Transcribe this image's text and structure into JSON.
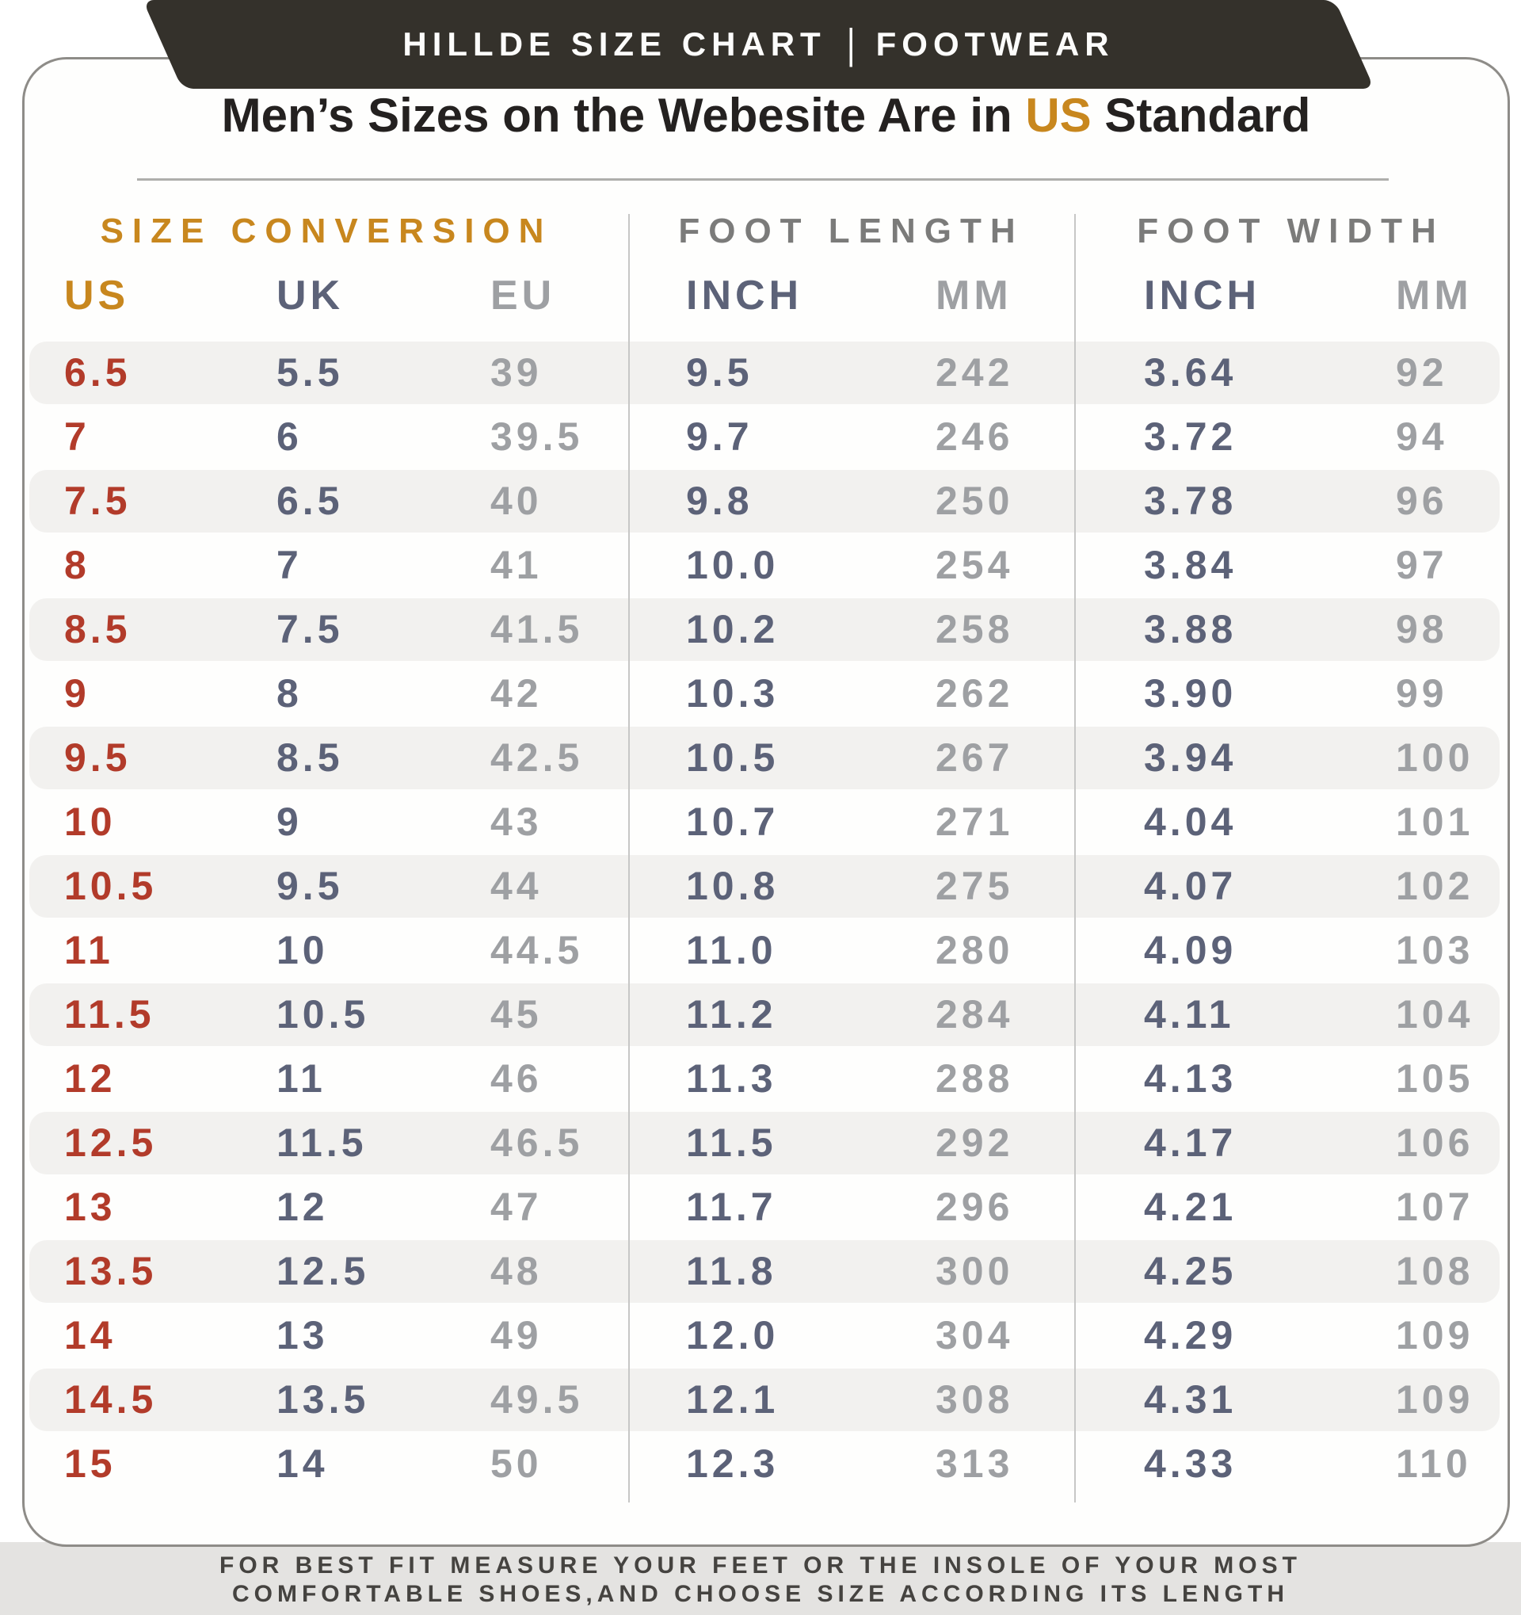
{
  "banner": {
    "left": "HILLDE SIZE CHART",
    "separator": "|",
    "right": "FOOTWEAR"
  },
  "title": {
    "prefix": "Men’s Sizes on the Webesite Are in ",
    "highlight": "US",
    "suffix": " Standard"
  },
  "chart_data": {
    "type": "table",
    "title": "Men’s Sizes on the Webesite Are in US Standard",
    "section_headers": [
      "SIZE CONVERSION",
      "FOOT LENGTH",
      "FOOT WIDTH"
    ],
    "columns": [
      "US",
      "UK",
      "EU",
      "INCH",
      "MM",
      "INCH",
      "MM"
    ],
    "rows": [
      [
        "6.5",
        "5.5",
        "39",
        "9.5",
        "242",
        "3.64",
        "92"
      ],
      [
        "7",
        "6",
        "39.5",
        "9.7",
        "246",
        "3.72",
        "94"
      ],
      [
        "7.5",
        "6.5",
        "40",
        "9.8",
        "250",
        "3.78",
        "96"
      ],
      [
        "8",
        "7",
        "41",
        "10.0",
        "254",
        "3.84",
        "97"
      ],
      [
        "8.5",
        "7.5",
        "41.5",
        "10.2",
        "258",
        "3.88",
        "98"
      ],
      [
        "9",
        "8",
        "42",
        "10.3",
        "262",
        "3.90",
        "99"
      ],
      [
        "9.5",
        "8.5",
        "42.5",
        "10.5",
        "267",
        "3.94",
        "100"
      ],
      [
        "10",
        "9",
        "43",
        "10.7",
        "271",
        "4.04",
        "101"
      ],
      [
        "10.5",
        "9.5",
        "44",
        "10.8",
        "275",
        "4.07",
        "102"
      ],
      [
        "11",
        "10",
        "44.5",
        "11.0",
        "280",
        "4.09",
        "103"
      ],
      [
        "11.5",
        "10.5",
        "45",
        "11.2",
        "284",
        "4.11",
        "104"
      ],
      [
        "12",
        "11",
        "46",
        "11.3",
        "288",
        "4.13",
        "105"
      ],
      [
        "12.5",
        "11.5",
        "46.5",
        "11.5",
        "292",
        "4.17",
        "106"
      ],
      [
        "13",
        "12",
        "47",
        "11.7",
        "296",
        "4.21",
        "107"
      ],
      [
        "13.5",
        "12.5",
        "48",
        "11.8",
        "300",
        "4.25",
        "108"
      ],
      [
        "14",
        "13",
        "49",
        "12.0",
        "304",
        "4.29",
        "109"
      ],
      [
        "14.5",
        "13.5",
        "49.5",
        "12.1",
        "308",
        "4.31",
        "109"
      ],
      [
        "15",
        "14",
        "50",
        "12.3",
        "313",
        "4.33",
        "110"
      ]
    ]
  },
  "footer": {
    "line1": "FOR BEST FIT MEASURE YOUR FEET OR THE INSOLE OF YOUR MOST",
    "line2": "COMFORTABLE SHOES,AND CHOOSE SIZE ACCORDING ITS LENGTH"
  },
  "colors": {
    "gold": "#c8871e",
    "red": "#b23b2a",
    "slate": "#5c6278",
    "gray": "#9ea0a3",
    "banner_bg": "#34312b",
    "stripe": "#f2f1ef",
    "footer_bg": "#e4e3e1"
  }
}
